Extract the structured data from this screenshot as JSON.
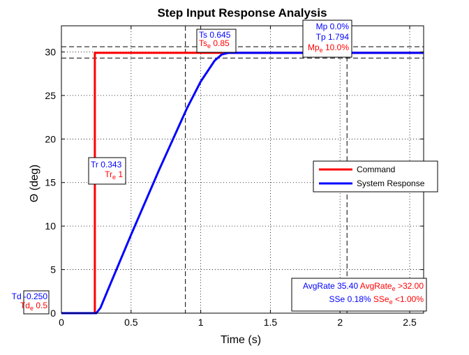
{
  "chart_data": {
    "type": "line",
    "title": "Step Input Response Analysis",
    "xlabel": "Time (s)",
    "ylabel": "Θ (deg)",
    "xlim": [
      0,
      2.6
    ],
    "ylim": [
      0,
      33
    ],
    "x_ticks": [
      0,
      0.5,
      1,
      1.5,
      2,
      2.5
    ],
    "x_tick_labels": [
      "0",
      "0.5",
      "1",
      "1.5",
      "2",
      "2.5"
    ],
    "y_ticks": [
      0,
      5,
      10,
      15,
      20,
      25,
      30
    ],
    "y_tick_labels": [
      "0",
      "5",
      "10",
      "15",
      "20",
      "25",
      "30"
    ],
    "grid": true,
    "legend_position": "right",
    "colors": {
      "command": "#ff0000",
      "response": "#0000ff",
      "guide": "#000000"
    },
    "series": [
      {
        "name": "Command",
        "color": "#ff0000",
        "points": [
          [
            0,
            0
          ],
          [
            0.24,
            0
          ],
          [
            0.24,
            29.9
          ],
          [
            2.6,
            29.9
          ]
        ]
      },
      {
        "name": "System Response",
        "color": "#0000ff",
        "points": [
          [
            0,
            0
          ],
          [
            0.25,
            0
          ],
          [
            0.28,
            0.6
          ],
          [
            0.35,
            3.3
          ],
          [
            0.5,
            9.0
          ],
          [
            0.7,
            16.4
          ],
          [
            0.9,
            23.5
          ],
          [
            1.0,
            26.6
          ],
          [
            1.1,
            29.0
          ],
          [
            1.15,
            29.7
          ],
          [
            1.2,
            29.9
          ],
          [
            2.6,
            29.9
          ]
        ]
      }
    ],
    "reference_lines": {
      "horizontal": [
        30.6,
        29.3
      ],
      "vertical": [
        0.89,
        2.05
      ]
    },
    "annotations": {
      "td": {
        "line1": "Td -0.250",
        "line2_main": "Td",
        "line2_sub": "e",
        "line2_value": " 0.5",
        "anchor": [
          0.0,
          0
        ]
      },
      "tr": {
        "line1": "Tr 0.343",
        "line2_main": "Tr",
        "line2_sub": "e",
        "line2_value": " 1",
        "anchor": [
          0.24,
          16.3
        ]
      },
      "ts": {
        "line1": "Ts 0.645",
        "line2_main": "Ts",
        "line2_sub": "e",
        "line2_value": " 0.85",
        "anchor": [
          1.0,
          31.8
        ]
      },
      "mp": {
        "line1": "Mp 0.0%",
        "line2": "Tp 1.794",
        "line3_main": "Mp",
        "line3_sub": "e",
        "line3_value": " 10.0%",
        "anchor": [
          2.02,
          31.5
        ]
      },
      "stats": {
        "line1_blue": "AvgRate 35.40",
        "line1_red_main": "AvgRate",
        "line1_red_sub": "e",
        "line1_red_value": " >32.00",
        "line2_blue": "SSe 0.18%",
        "line2_red_main": "SSe",
        "line2_red_sub": "e",
        "line2_red_value": " <1.00%"
      }
    }
  }
}
